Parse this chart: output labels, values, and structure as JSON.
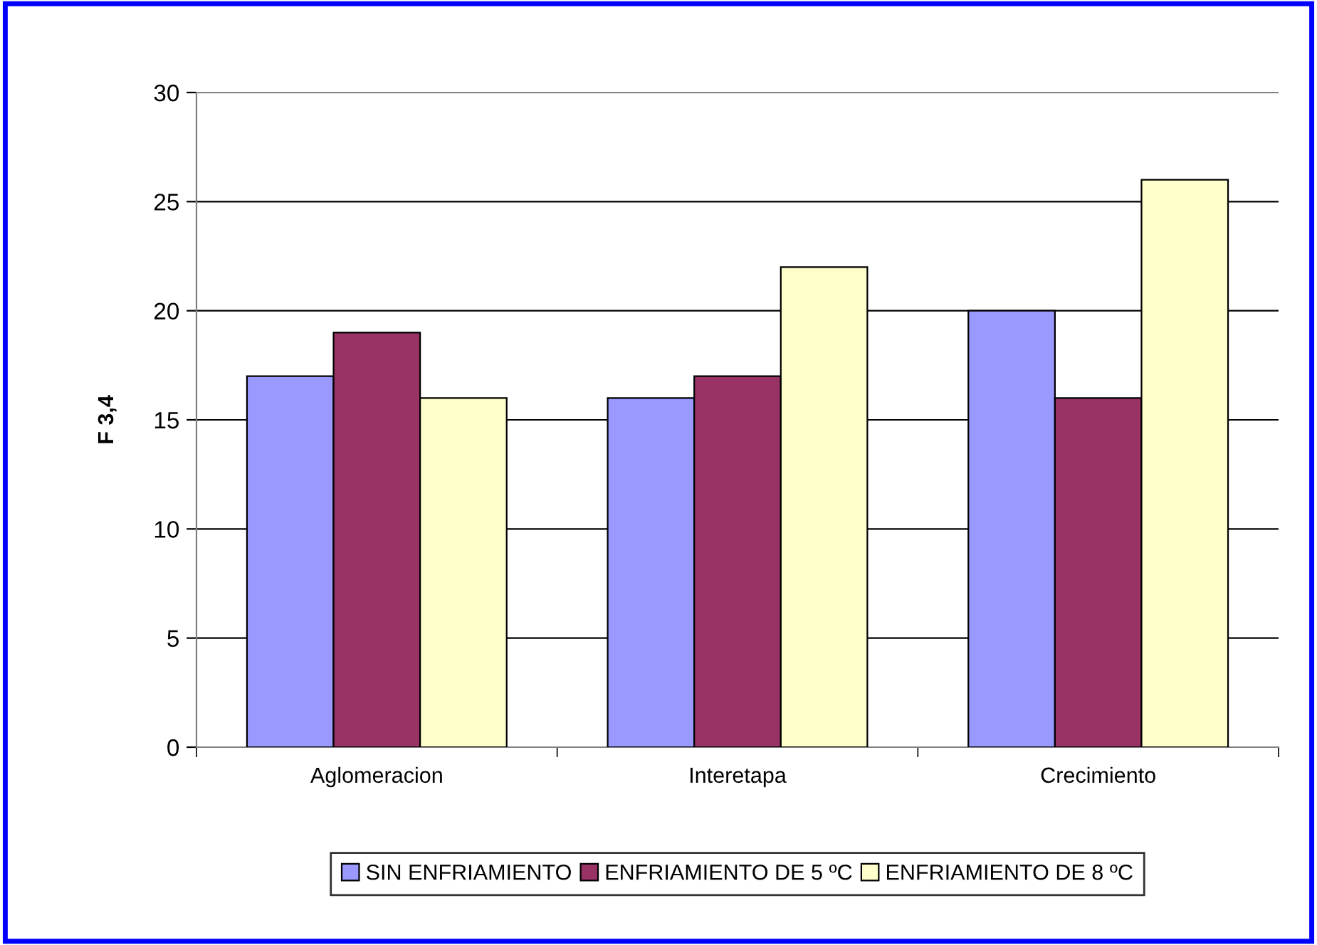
{
  "chart_data": {
    "type": "bar",
    "ylabel": "F 3,4",
    "categories": [
      "Aglomeracion",
      "Interetapa",
      "Crecimiento"
    ],
    "series": [
      {
        "name": "SIN ENFRIAMIENTO",
        "color": "#9999ff",
        "values": [
          17,
          16,
          20
        ]
      },
      {
        "name": "ENFRIAMIENTO DE 5 ºC",
        "color": "#993366",
        "values": [
          19,
          17,
          16
        ]
      },
      {
        "name": "ENFRIAMIENTO DE 8 ºC",
        "color": "#ffffcc",
        "values": [
          16,
          22,
          26
        ]
      }
    ],
    "ylim": [
      0,
      30
    ],
    "yticks": [
      0,
      5,
      10,
      15,
      20,
      25,
      30
    ],
    "grid": "y",
    "legend": "bottom"
  }
}
